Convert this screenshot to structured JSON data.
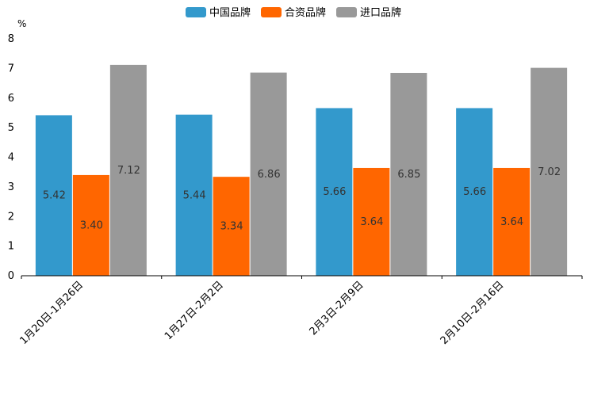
{
  "chart_data": {
    "type": "bar",
    "title": "",
    "xlabel": "",
    "ylabel": "%",
    "ylim": [
      0,
      8
    ],
    "yticks": [
      0,
      1,
      2,
      3,
      4,
      5,
      6,
      7,
      8
    ],
    "grid": false,
    "legend_position": "top-center",
    "categories": [
      "1月20日-1月26日",
      "1月27日-2月2日",
      "2月3日-2月9日",
      "2月10日-2月16日"
    ],
    "series": [
      {
        "name": "中国品牌",
        "color": "#3399cc",
        "values": [
          5.42,
          5.44,
          5.66,
          5.66
        ],
        "labels": [
          "5.42",
          "5.44",
          "5.66",
          "5.66"
        ]
      },
      {
        "name": "合资品牌",
        "color": "#ff6600",
        "values": [
          3.4,
          3.34,
          3.64,
          3.64
        ],
        "labels": [
          "3.40",
          "3.34",
          "3.64",
          "3.64"
        ]
      },
      {
        "name": "进口品牌",
        "color": "#999999",
        "values": [
          7.12,
          6.86,
          6.85,
          7.02
        ],
        "labels": [
          "7.12",
          "6.86",
          "6.85",
          "7.02"
        ]
      }
    ]
  }
}
